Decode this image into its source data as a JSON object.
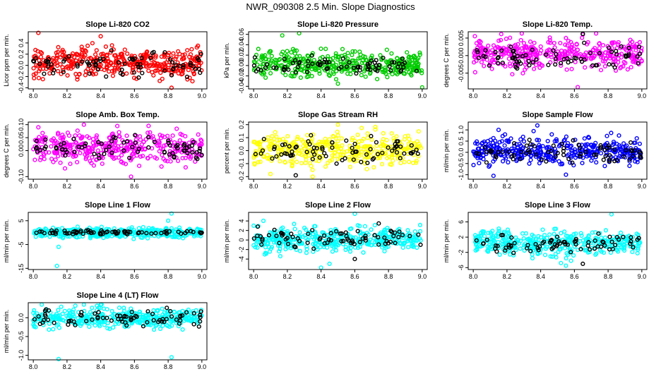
{
  "title": "NWR_090308  2.5 Min. Slope Diagnostics",
  "colors": {
    "red": "#ff0000",
    "green": "#00cc00",
    "magenta": "#ff00ff",
    "yellow": "#ffff00",
    "blue": "#0000ff",
    "cyan": "#00ffff",
    "black": "#000000"
  },
  "chart_data": [
    {
      "type": "scatter",
      "title": "Slope Li-820 CO2",
      "xlabel": "",
      "ylabel": "Licor ppm per min.",
      "xlim": [
        7.97,
        9.03
      ],
      "ylim": [
        -0.42,
        0.6
      ],
      "xticks": [
        "8.0",
        "8.2",
        "8.4",
        "8.6",
        "8.8",
        "9.0"
      ],
      "yticks": [
        "-0.4",
        "-0.2",
        "0.0",
        "0.2",
        "0.4"
      ],
      "ytick_values": [
        -0.4,
        -0.2,
        0.0,
        0.2,
        0.4
      ],
      "series": [
        {
          "color": "#ff0000",
          "center": 0.05,
          "spread": 0.13,
          "n": 380,
          "outliers": [
            [
              8.03,
              0.58
            ],
            [
              8.82,
              -0.4
            ],
            [
              8.4,
              0.52
            ]
          ]
        },
        {
          "color": "#000000",
          "center": 0.02,
          "spread": 0.11,
          "n": 75,
          "outliers": []
        }
      ]
    },
    {
      "type": "scatter",
      "title": "Slope Li-820 Pressure",
      "xlabel": "",
      "ylabel": "kPa per min.",
      "xlim": [
        7.97,
        9.03
      ],
      "ylim": [
        -0.045,
        0.065
      ],
      "xticks": [
        "8.0",
        "8.2",
        "8.4",
        "8.6",
        "8.8",
        "9.0"
      ],
      "yticks": [
        "-0.04",
        "-0.02",
        "0.00",
        "0.02",
        "0.04",
        "0.06"
      ],
      "ytick_values": [
        -0.04,
        -0.02,
        0.0,
        0.02,
        0.04,
        0.06
      ],
      "series": [
        {
          "color": "#00cc00",
          "center": 0.002,
          "spread": 0.012,
          "n": 380,
          "outliers": [
            [
              8.27,
              0.062
            ],
            [
              8.17,
              0.058
            ],
            [
              8.5,
              -0.035
            ],
            [
              9.0,
              -0.042
            ]
          ]
        },
        {
          "color": "#000000",
          "center": 0.001,
          "spread": 0.008,
          "n": 75,
          "outliers": []
        }
      ]
    },
    {
      "type": "scatter",
      "title": "Slope Li-820 Temp.",
      "xlabel": "",
      "ylabel": "degrees C per min.",
      "xlim": [
        7.97,
        9.03
      ],
      "ylim": [
        -0.0095,
        0.0068
      ],
      "xticks": [
        "8.0",
        "8.2",
        "8.4",
        "8.6",
        "8.8",
        "9.0"
      ],
      "yticks": [
        "-0.005",
        "0.000",
        "0.005"
      ],
      "ytick_values": [
        -0.005,
        0.0,
        0.005
      ],
      "series": [
        {
          "color": "#ff00ff",
          "center": 0.0005,
          "spread": 0.0022,
          "n": 380,
          "outliers": [
            [
              8.65,
              0.006
            ],
            [
              8.62,
              -0.009
            ],
            [
              8.55,
              0.005
            ]
          ]
        },
        {
          "color": "#000000",
          "center": 0.0,
          "spread": 0.0015,
          "n": 75,
          "outliers": [
            [
              8.65,
              0.0062
            ]
          ]
        }
      ]
    },
    {
      "type": "scatter",
      "title": "Slope Amb. Box Temp.",
      "xlabel": "",
      "ylabel": "degrees C per min.",
      "xlim": [
        7.97,
        9.03
      ],
      "ylim": [
        -0.11,
        0.11
      ],
      "xticks": [
        "8.0",
        "8.2",
        "8.4",
        "8.6",
        "8.8",
        "9.0"
      ],
      "yticks": [
        "-0.10",
        "0.00",
        "0.05",
        "0.10"
      ],
      "ytick_values": [
        -0.1,
        0.0,
        0.05,
        0.1
      ],
      "series": [
        {
          "color": "#ff00ff",
          "center": 0.01,
          "spread": 0.03,
          "n": 380,
          "outliers": [
            [
              8.3,
              0.1
            ],
            [
              8.03,
              0.09
            ],
            [
              8.58,
              -0.1
            ]
          ]
        },
        {
          "color": "#000000",
          "center": 0.01,
          "spread": 0.025,
          "n": 75,
          "outliers": []
        }
      ]
    },
    {
      "type": "scatter",
      "title": "Slope Gas Stream RH",
      "xlabel": "",
      "ylabel": "percent per min.",
      "xlim": [
        7.97,
        9.03
      ],
      "ylim": [
        -0.22,
        0.22
      ],
      "xticks": [
        "8.0",
        "8.2",
        "8.4",
        "8.6",
        "8.8",
        "9.0"
      ],
      "yticks": [
        "-0.2",
        "-0.1",
        "0.0",
        "0.1",
        "0.2"
      ],
      "ytick_values": [
        -0.2,
        -0.1,
        0.0,
        0.1,
        0.2
      ],
      "series": [
        {
          "color": "#ffff00",
          "center": 0.01,
          "spread": 0.06,
          "n": 380,
          "outliers": [
            [
              8.5,
              0.2
            ],
            [
              8.35,
              -0.2
            ],
            [
              8.1,
              -0.18
            ]
          ]
        },
        {
          "color": "#000000",
          "center": 0.01,
          "spread": 0.05,
          "n": 75,
          "outliers": [
            [
              8.25,
              -0.19
            ]
          ]
        }
      ]
    },
    {
      "type": "scatter",
      "title": "Slope Sample Flow",
      "xlabel": "",
      "ylabel": "ml/min per min.",
      "xlim": [
        7.97,
        9.03
      ],
      "ylim": [
        -1.2,
        1.35
      ],
      "xticks": [
        "8.0",
        "8.2",
        "8.4",
        "8.6",
        "8.8",
        "9.0"
      ],
      "yticks": [
        "-1.0",
        "-0.5",
        "0.0",
        "0.5",
        "1.0"
      ],
      "ytick_values": [
        -1.0,
        -0.5,
        0.0,
        0.5,
        1.0
      ],
      "series": [
        {
          "color": "#0000ff",
          "center": 0.05,
          "spread": 0.3,
          "n": 380,
          "outliers": [
            [
              8.38,
              1.2
            ],
            [
              8.15,
              1.0
            ],
            [
              8.55,
              -1.0
            ],
            [
              8.12,
              -1.05
            ]
          ]
        },
        {
          "color": "#000000",
          "center": 0.0,
          "spread": 0.25,
          "n": 75,
          "outliers": []
        }
      ]
    },
    {
      "type": "scatter",
      "title": "Slope Line 1 Flow",
      "xlabel": "",
      "ylabel": "ml/min per min.",
      "xlim": [
        7.97,
        9.03
      ],
      "ylim": [
        -15.5,
        8.5
      ],
      "xticks": [
        "8.0",
        "8.2",
        "8.4",
        "8.6",
        "8.8",
        "9.0"
      ],
      "yticks": [
        "-15",
        "-5",
        "5"
      ],
      "ytick_values": [
        -15,
        -5,
        5
      ],
      "series": [
        {
          "color": "#00ffff",
          "center": 0.0,
          "spread": 1.0,
          "n": 380,
          "outliers": [
            [
              8.14,
              -14
            ],
            [
              8.82,
              8
            ],
            [
              8.8,
              5
            ],
            [
              8.15,
              -6
            ]
          ]
        },
        {
          "color": "#000000",
          "center": 0.1,
          "spread": 0.4,
          "n": 75,
          "outliers": []
        }
      ]
    },
    {
      "type": "scatter",
      "title": "Slope Line 2 Flow",
      "xlabel": "",
      "ylabel": "ml/min per min.",
      "xlim": [
        7.97,
        9.03
      ],
      "ylim": [
        -6.2,
        5.8
      ],
      "xticks": [
        "8.0",
        "8.2",
        "8.4",
        "8.6",
        "8.8",
        "9.0"
      ],
      "yticks": [
        "-4",
        "-2",
        "0",
        "2",
        "4"
      ],
      "ytick_values": [
        -4,
        -2,
        0,
        2,
        4
      ],
      "series": [
        {
          "color": "#00ffff",
          "center": 0.2,
          "spread": 1.3,
          "n": 380,
          "outliers": [
            [
              8.6,
              5.5
            ],
            [
              8.45,
              -5
            ],
            [
              8.4,
              -5.8
            ],
            [
              8.0,
              3
            ]
          ]
        },
        {
          "color": "#000000",
          "center": 0.1,
          "spread": 1.1,
          "n": 75,
          "outliers": [
            [
              8.6,
              -4
            ]
          ]
        }
      ]
    },
    {
      "type": "scatter",
      "title": "Slope Line 3 Flow",
      "xlabel": "",
      "ylabel": "ml/min per min.",
      "xlim": [
        7.97,
        9.03
      ],
      "ylim": [
        -6.5,
        8.5
      ],
      "xticks": [
        "8.0",
        "8.2",
        "8.4",
        "8.6",
        "8.8",
        "9.0"
      ],
      "yticks": [
        "-6",
        "-2",
        "2",
        "6"
      ],
      "ytick_values": [
        -6,
        -2,
        2,
        6
      ],
      "series": [
        {
          "color": "#00ffff",
          "center": 0.5,
          "spread": 1.6,
          "n": 380,
          "outliers": [
            [
              8.82,
              8
            ],
            [
              8.55,
              -5.5
            ],
            [
              8.52,
              -4.8
            ],
            [
              8.58,
              -4.2
            ]
          ]
        },
        {
          "color": "#000000",
          "center": 0.3,
          "spread": 1.4,
          "n": 75,
          "outliers": [
            [
              8.65,
              -5
            ]
          ]
        }
      ]
    },
    {
      "type": "scatter",
      "title": "Slope Line 4 (LT) Flow",
      "xlabel": "",
      "ylabel": "ml/min per min.",
      "xlim": [
        7.97,
        9.03
      ],
      "ylim": [
        -1.12,
        0.4
      ],
      "xticks": [
        "8.0",
        "8.2",
        "8.4",
        "8.6",
        "8.8",
        "9.0"
      ],
      "yticks": [
        "-1.0",
        "-0.5",
        "0.0"
      ],
      "ytick_values": [
        -1.0,
        -0.5,
        0.0
      ],
      "series": [
        {
          "color": "#00ffff",
          "center": 0.0,
          "spread": 0.13,
          "n": 380,
          "outliers": [
            [
              8.15,
              -1.1
            ],
            [
              8.82,
              -1.05
            ],
            [
              8.3,
              0.35
            ],
            [
              8.05,
              0.35
            ]
          ]
        },
        {
          "color": "#000000",
          "center": 0.0,
          "spread": 0.12,
          "n": 75,
          "outliers": []
        }
      ]
    }
  ]
}
